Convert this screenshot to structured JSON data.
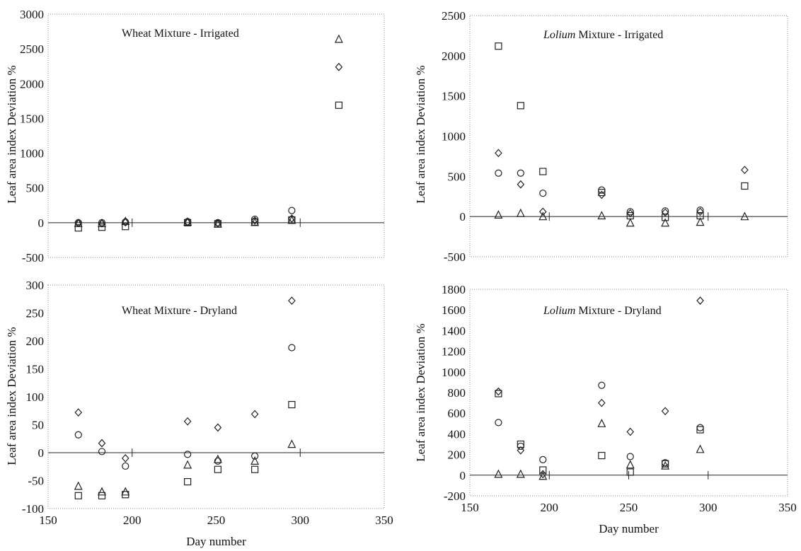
{
  "chart_data": [
    {
      "type": "scatter",
      "title_parts": [
        {
          "text": "Wheat Mixture - Irrigated",
          "italic": false
        }
      ],
      "ylabel": "Leaf area index Deviation %",
      "xlabel": "",
      "xlim": [
        150,
        350
      ],
      "ylim": [
        -500,
        3000
      ],
      "yticks": [
        -500,
        0,
        500,
        1000,
        1500,
        2000,
        2500,
        3000
      ],
      "xticks": [],
      "vertical_markers": [
        200,
        300
      ],
      "grid": false,
      "series": [
        {
          "marker": "square",
          "points": [
            [
              168,
              -75
            ],
            [
              182,
              -65
            ],
            [
              196,
              -55
            ],
            [
              233,
              0
            ],
            [
              251,
              -15
            ],
            [
              273,
              10
            ],
            [
              295,
              40
            ],
            [
              323,
              1690
            ]
          ]
        },
        {
          "marker": "diamond",
          "points": [
            [
              168,
              -5
            ],
            [
              182,
              -10
            ],
            [
              196,
              5
            ],
            [
              233,
              10
            ],
            [
              251,
              -5
            ],
            [
              273,
              30
            ],
            [
              295,
              60
            ],
            [
              323,
              2240
            ]
          ]
        },
        {
          "marker": "circle",
          "points": [
            [
              168,
              0
            ],
            [
              182,
              0
            ],
            [
              196,
              10
            ],
            [
              233,
              15
            ],
            [
              251,
              0
            ],
            [
              273,
              50
            ],
            [
              295,
              175
            ]
          ]
        },
        {
          "marker": "triangle",
          "points": [
            [
              168,
              -10
            ],
            [
              182,
              -10
            ],
            [
              196,
              20
            ],
            [
              233,
              10
            ],
            [
              251,
              -20
            ],
            [
              273,
              5
            ],
            [
              295,
              35
            ],
            [
              323,
              2640
            ]
          ]
        }
      ]
    },
    {
      "type": "scatter",
      "title_parts": [
        {
          "text": "Lolium",
          "italic": true
        },
        {
          "text": " Mixture - Irrigated",
          "italic": false
        }
      ],
      "ylabel": "Leaf area index Deviation %",
      "xlabel": "",
      "xlim": [
        150,
        350
      ],
      "ylim": [
        -500,
        2500
      ],
      "yticks": [
        -500,
        0,
        500,
        1000,
        1500,
        2000,
        2500
      ],
      "xticks": [],
      "vertical_markers": [
        200,
        300
      ],
      "grid": false,
      "series": [
        {
          "marker": "square",
          "points": [
            [
              168,
              2120
            ],
            [
              182,
              1380
            ],
            [
              196,
              560
            ],
            [
              233,
              300
            ],
            [
              251,
              10
            ],
            [
              273,
              -10
            ],
            [
              295,
              10
            ],
            [
              323,
              380
            ]
          ]
        },
        {
          "marker": "diamond",
          "points": [
            [
              168,
              790
            ],
            [
              182,
              400
            ],
            [
              196,
              60
            ],
            [
              233,
              270
            ],
            [
              251,
              40
            ],
            [
              273,
              50
            ],
            [
              295,
              60
            ],
            [
              323,
              580
            ]
          ]
        },
        {
          "marker": "circle",
          "points": [
            [
              168,
              540
            ],
            [
              182,
              540
            ],
            [
              196,
              290
            ],
            [
              233,
              330
            ],
            [
              251,
              60
            ],
            [
              273,
              70
            ],
            [
              295,
              80
            ]
          ]
        },
        {
          "marker": "triangle",
          "points": [
            [
              168,
              20
            ],
            [
              182,
              40
            ],
            [
              196,
              0
            ],
            [
              233,
              10
            ],
            [
              251,
              -80
            ],
            [
              273,
              -80
            ],
            [
              295,
              -70
            ],
            [
              323,
              0
            ]
          ]
        }
      ]
    },
    {
      "type": "scatter",
      "title_parts": [
        {
          "text": "Wheat Mixture - Dryland",
          "italic": false
        }
      ],
      "ylabel": "Leaf area index Deviation %",
      "xlabel": "Day number",
      "xlim": [
        150,
        350
      ],
      "ylim": [
        -100,
        300
      ],
      "yticks": [
        -100,
        -50,
        0,
        50,
        100,
        150,
        200,
        250,
        300
      ],
      "xticks": [
        150,
        200,
        250,
        300,
        350
      ],
      "vertical_markers": [
        200,
        300
      ],
      "grid": false,
      "series": [
        {
          "marker": "square",
          "points": [
            [
              168,
              -77
            ],
            [
              182,
              -77
            ],
            [
              196,
              -75
            ],
            [
              233,
              -52
            ],
            [
              251,
              -30
            ],
            [
              273,
              -30
            ],
            [
              295,
              86
            ]
          ]
        },
        {
          "marker": "diamond",
          "points": [
            [
              168,
              72
            ],
            [
              182,
              17
            ],
            [
              196,
              -10
            ],
            [
              233,
              56
            ],
            [
              251,
              45
            ],
            [
              273,
              69
            ],
            [
              295,
              272
            ]
          ]
        },
        {
          "marker": "circle",
          "points": [
            [
              168,
              32
            ],
            [
              182,
              2
            ],
            [
              196,
              -24
            ],
            [
              233,
              -3
            ],
            [
              251,
              -15
            ],
            [
              273,
              -6
            ],
            [
              295,
              188
            ]
          ]
        },
        {
          "marker": "triangle",
          "points": [
            [
              168,
              -60
            ],
            [
              182,
              -70
            ],
            [
              196,
              -70
            ],
            [
              233,
              -22
            ],
            [
              251,
              -12
            ],
            [
              273,
              -15
            ],
            [
              295,
              15
            ]
          ]
        }
      ]
    },
    {
      "type": "scatter",
      "title_parts": [
        {
          "text": "Lolium",
          "italic": true
        },
        {
          "text": " Mixture - Dryland",
          "italic": false
        }
      ],
      "ylabel": "Leaf area index Deviation %",
      "xlabel": "Day number",
      "xlim": [
        150,
        350
      ],
      "ylim": [
        -200,
        1800
      ],
      "yticks": [
        -200,
        0,
        200,
        400,
        600,
        800,
        1000,
        1200,
        1400,
        1600,
        1800
      ],
      "xticks": [
        150,
        200,
        250,
        300,
        350
      ],
      "vertical_markers": [
        200,
        250,
        300
      ],
      "grid": false,
      "series": [
        {
          "marker": "square",
          "points": [
            [
              168,
              790
            ],
            [
              182,
              300
            ],
            [
              196,
              50
            ],
            [
              233,
              190
            ],
            [
              251,
              30
            ],
            [
              273,
              110
            ],
            [
              295,
              440
            ]
          ]
        },
        {
          "marker": "diamond",
          "points": [
            [
              168,
              810
            ],
            [
              182,
              240
            ],
            [
              196,
              10
            ],
            [
              233,
              700
            ],
            [
              251,
              420
            ],
            [
              273,
              620
            ],
            [
              295,
              1690
            ]
          ]
        },
        {
          "marker": "circle",
          "points": [
            [
              168,
              510
            ],
            [
              182,
              280
            ],
            [
              196,
              150
            ],
            [
              233,
              870
            ],
            [
              251,
              180
            ],
            [
              273,
              120
            ],
            [
              295,
              460
            ]
          ]
        },
        {
          "marker": "triangle",
          "points": [
            [
              168,
              10
            ],
            [
              182,
              10
            ],
            [
              196,
              -10
            ],
            [
              233,
              500
            ],
            [
              251,
              100
            ],
            [
              273,
              90
            ],
            [
              295,
              250
            ]
          ]
        }
      ]
    }
  ]
}
